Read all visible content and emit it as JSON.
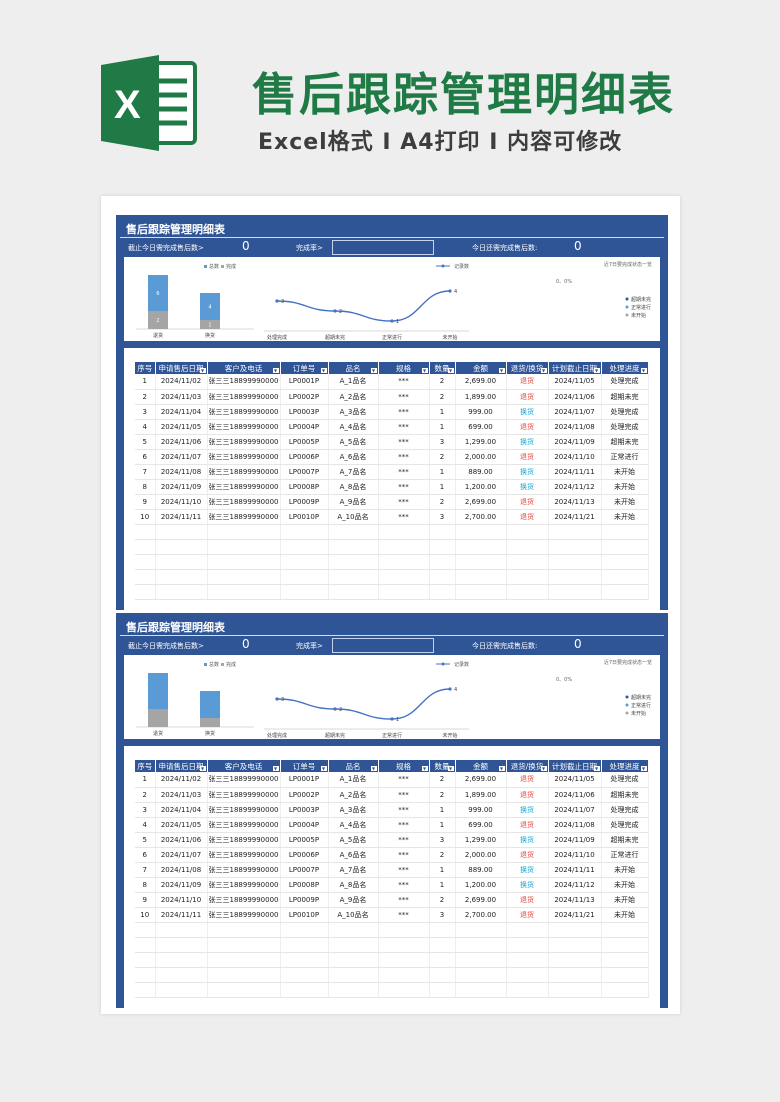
{
  "header": {
    "title": "售后跟踪管理明细表",
    "subtitle": "Excel格式 I A4打印 I 内容可修改"
  },
  "colors": {
    "brand_green": "#1f7a45",
    "sheet_blue": "#2f5597",
    "bar_total": "#5b9bd5",
    "bar_done": "#a5a5a5",
    "line": "#4472c4"
  },
  "sheet": {
    "title": "售后跟踪管理明细表",
    "kpi_label_1": "截止今日需完成售后数>",
    "kpi_value_1": "0",
    "kpi_label_2": "完成率>",
    "kpi_label_3": "今日还需完成售后数:",
    "kpi_value_3": "0"
  },
  "chart_data": [
    {
      "type": "bar",
      "categories": [
        "退货",
        "换货"
      ],
      "series": [
        {
          "name": "总数",
          "values": [
            6,
            4
          ]
        },
        {
          "name": "完成",
          "values": [
            2,
            1
          ]
        }
      ],
      "legend": "top-left",
      "data_labels_shown": "sheet1_only"
    },
    {
      "type": "line",
      "categories": [
        "处理完成",
        "超期未完",
        "正常进行",
        "未开始"
      ],
      "series": [
        {
          "name": "记录数",
          "values": [
            3,
            2,
            1,
            4
          ]
        }
      ],
      "legend": "top",
      "note": "近7日要完成状态一览"
    },
    {
      "type": "pie",
      "title": "0、0%",
      "legend_items": [
        "超期未完",
        "正常进行",
        "未开始"
      ],
      "values": [
        0,
        0,
        0
      ]
    }
  ],
  "table": {
    "headers": [
      "序号",
      "申请售后日期",
      "客户及电话",
      "订单号",
      "品名",
      "规格",
      "数量",
      "金额",
      "退货/换货",
      "计划截止日期",
      "处理进度"
    ],
    "rows": [
      [
        "1",
        "2024/11/02",
        "张三三18899990000",
        "LP0001P",
        "A_1品名",
        "***",
        "2",
        "2,699.00",
        "退货",
        "2024/11/05",
        "处理完成"
      ],
      [
        "2",
        "2024/11/03",
        "张三三18899990000",
        "LP0002P",
        "A_2品名",
        "***",
        "2",
        "1,899.00",
        "退货",
        "2024/11/06",
        "超期未完"
      ],
      [
        "3",
        "2024/11/04",
        "张三三18899990000",
        "LP0003P",
        "A_3品名",
        "***",
        "1",
        "999.00",
        "换货",
        "2024/11/07",
        "处理完成"
      ],
      [
        "4",
        "2024/11/05",
        "张三三18899990000",
        "LP0004P",
        "A_4品名",
        "***",
        "1",
        "699.00",
        "退货",
        "2024/11/08",
        "处理完成"
      ],
      [
        "5",
        "2024/11/06",
        "张三三18899990000",
        "LP0005P",
        "A_5品名",
        "***",
        "3",
        "1,299.00",
        "换货",
        "2024/11/09",
        "超期未完"
      ],
      [
        "6",
        "2024/11/07",
        "张三三18899990000",
        "LP0006P",
        "A_6品名",
        "***",
        "2",
        "2,000.00",
        "退货",
        "2024/11/10",
        "正常进行"
      ],
      [
        "7",
        "2024/11/08",
        "张三三18899990000",
        "LP0007P",
        "A_7品名",
        "***",
        "1",
        "889.00",
        "换货",
        "2024/11/11",
        "未开始"
      ],
      [
        "8",
        "2024/11/09",
        "张三三18899990000",
        "LP0008P",
        "A_8品名",
        "***",
        "1",
        "1,200.00",
        "换货",
        "2024/11/12",
        "未开始"
      ],
      [
        "9",
        "2024/11/10",
        "张三三18899990000",
        "LP0009P",
        "A_9品名",
        "***",
        "2",
        "2,699.00",
        "退货",
        "2024/11/13",
        "未开始"
      ],
      [
        "10",
        "2024/11/11",
        "张三三18899990000",
        "LP0010P",
        "A_10品名",
        "***",
        "3",
        "2,700.00",
        "退货",
        "2024/11/21",
        "未开始"
      ]
    ]
  }
}
